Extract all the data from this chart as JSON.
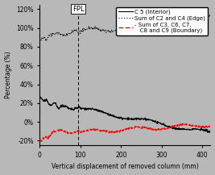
{
  "title": "",
  "xlabel": "Vertical displacement of removed column (mm)",
  "ylabel": "Percentage (%)",
  "xlim": [
    0,
    420
  ],
  "ylim": [
    -25,
    125
  ],
  "yticks": [
    -20,
    0,
    20,
    40,
    60,
    80,
    100,
    120
  ],
  "ytick_labels": [
    "-20%",
    "0%",
    "20%",
    "40%",
    "60%",
    "80%",
    "100%",
    "120%"
  ],
  "xticks": [
    0,
    100,
    200,
    300,
    400
  ],
  "fpl_x": 95,
  "fpl_label": "FPL",
  "background_color": "#b8b8b8",
  "legend_labels": [
    "C 5 (Interior)",
    "Sum of C2 and C4 (Edge)",
    "- Sum of C3, C6, C7,\n   C8 and C9 (Boundary)"
  ],
  "line1_color": "#000000",
  "line1_style": "-",
  "line2_color": "#000000",
  "line2_style": ":",
  "line3_color": "#ff0000",
  "line3_style": "--",
  "font_size": 6.5
}
